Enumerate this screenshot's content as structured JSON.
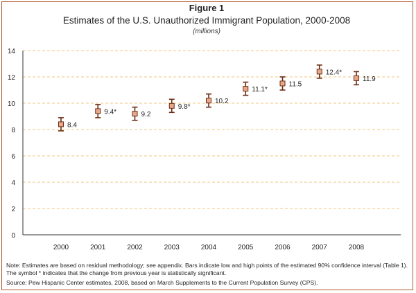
{
  "figure": {
    "label": "Figure 1",
    "title": "Estimates of the U.S. Unauthorized Immigrant Population, 2000-2008",
    "subtitle": "(millions)",
    "note": "Note: Estimates are based on residual methodology; see appendix. Bars indicate low and high points of the estimated 90% confidence interval (Table 1). The symbol * indicates that the change from previous year is statistically significant.",
    "source": "Source: Pew Hispanic Center estimates, 2008, based on March Supplements to the Current Population Survey (CPS)."
  },
  "colors": {
    "frame": "#b0522a",
    "marker_fill": "#e8a88a",
    "marker_stroke": "#6b2c12",
    "gridline": "#f0c77c",
    "axis": "#333333"
  },
  "chart_data": {
    "type": "scatter",
    "title": "Estimates of the U.S. Unauthorized Immigrant Population, 2000-2008",
    "subtitle": "(millions)",
    "xlabel": "",
    "ylabel": "",
    "ylim": [
      0,
      14
    ],
    "yticks": [
      0,
      2,
      4,
      6,
      8,
      10,
      12,
      14
    ],
    "grid": "dashed horizontal",
    "categories": [
      "2000",
      "2001",
      "2002",
      "2003",
      "2004",
      "2005",
      "2006",
      "2007",
      "2008"
    ],
    "values": [
      8.4,
      9.4,
      9.2,
      9.8,
      10.2,
      11.1,
      11.5,
      12.4,
      11.9
    ],
    "low": [
      7.9,
      8.9,
      8.7,
      9.3,
      9.7,
      10.6,
      11.0,
      11.9,
      11.4
    ],
    "high": [
      8.9,
      9.9,
      9.7,
      10.3,
      10.7,
      11.6,
      12.0,
      12.9,
      12.4
    ],
    "labels": [
      "8.4",
      "9.4*",
      "9.2",
      "9.8*",
      "10.2",
      "11.1*",
      "11.5",
      "12.4*",
      "11.9"
    ]
  }
}
